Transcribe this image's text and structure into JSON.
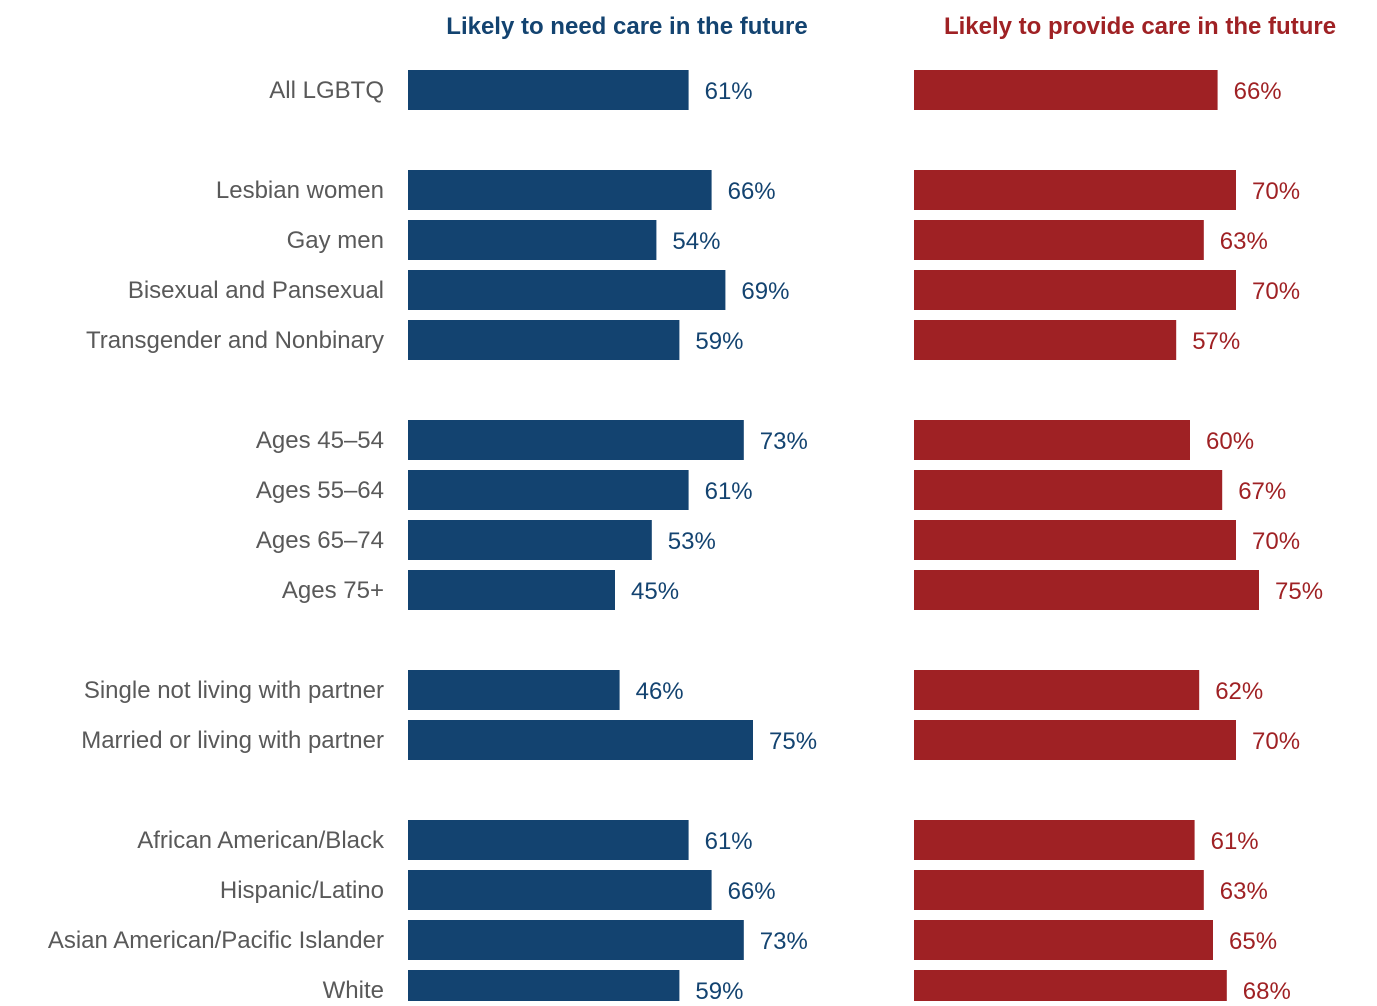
{
  "chart_data": {
    "type": "bar",
    "orientation": "horizontal",
    "unit": "%",
    "xlim": [
      0,
      100
    ],
    "grid": false,
    "categories": [
      "All LGBTQ",
      "Lesbian women",
      "Gay men",
      "Bisexual and Pansexual",
      "Transgender and Nonbinary",
      "Ages 45–54",
      "Ages 55–64",
      "Ages 65–74",
      "Ages 75+",
      "Single not living with partner",
      "Married or living with partner",
      "African American/Black",
      "Hispanic/Latino",
      "Asian American/Pacific Islander",
      "White"
    ],
    "groups": [
      [
        0
      ],
      [
        1,
        2,
        3,
        4
      ],
      [
        5,
        6,
        7,
        8
      ],
      [
        9,
        10
      ],
      [
        11,
        12,
        13,
        14
      ]
    ],
    "series": [
      {
        "name": "Likely to need care in the future",
        "color": "#134370",
        "values": [
          61,
          66,
          54,
          69,
          59,
          73,
          61,
          53,
          45,
          46,
          75,
          61,
          66,
          73,
          59
        ],
        "labels": [
          "61%",
          "66%",
          "54%",
          "69%",
          "59%",
          "73%",
          "61%",
          "53%",
          "45%",
          "46%",
          "75%",
          "61%",
          "66%",
          "73%",
          "59%"
        ]
      },
      {
        "name": "Likely to provide care in the future",
        "color": "#9f2124",
        "values": [
          66,
          70,
          63,
          70,
          57,
          60,
          67,
          70,
          75,
          62,
          70,
          61,
          63,
          65,
          68
        ],
        "labels": [
          "66%",
          "70%",
          "63%",
          "70%",
          "57%",
          "60%",
          "67%",
          "70%",
          "75%",
          "62%",
          "70%",
          "61%",
          "63%",
          "65%",
          "68%"
        ]
      }
    ]
  }
}
